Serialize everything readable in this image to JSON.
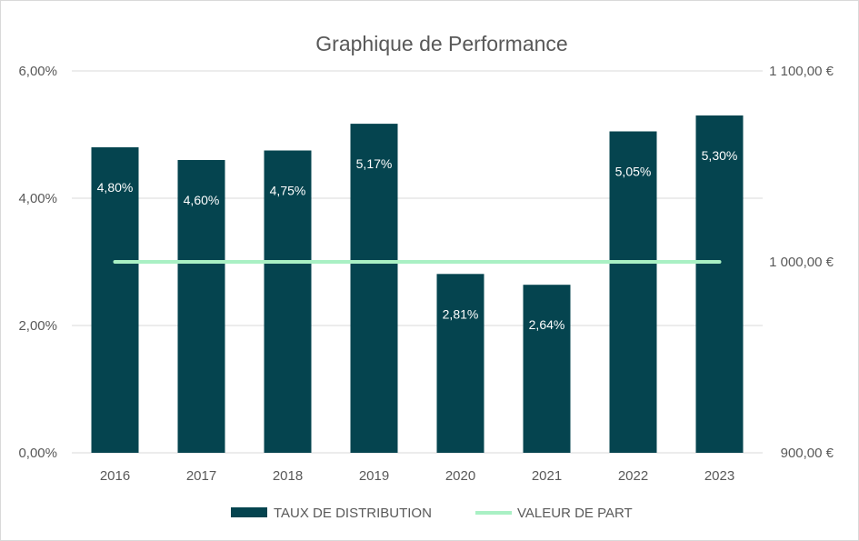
{
  "chart_data": {
    "type": "bar",
    "title": "Graphique de Performance",
    "categories": [
      "2016",
      "2017",
      "2018",
      "2019",
      "2020",
      "2021",
      "2022",
      "2023"
    ],
    "series": [
      {
        "name": "TAUX DE DISTRIBUTION",
        "type": "bar",
        "axis": "left",
        "color": "#05444f",
        "values": [
          4.8,
          4.6,
          4.75,
          5.17,
          2.81,
          2.64,
          5.05,
          5.3
        ],
        "labels": [
          "4,80%",
          "4,60%",
          "4,75%",
          "5,17%",
          "2,81%",
          "2,64%",
          "5,05%",
          "5,30%"
        ]
      },
      {
        "name": "VALEUR DE PART",
        "type": "line",
        "axis": "right",
        "color": "#a9f0c4",
        "values": [
          1000,
          1000,
          1000,
          1000,
          1000,
          1000,
          1000,
          1000
        ]
      }
    ],
    "y_left": {
      "min": 0,
      "max": 6,
      "ticks": [
        0,
        2,
        4,
        6
      ],
      "tick_labels": [
        "0,00%",
        "2,00%",
        "4,00%",
        "6,00%"
      ]
    },
    "y_right": {
      "min": 900,
      "max": 1100,
      "ticks": [
        900,
        1000,
        1100
      ],
      "tick_labels": [
        "900,00 €",
        "1 000,00 €",
        "1 100,00 €"
      ]
    },
    "grid": true,
    "legend": "bottom"
  }
}
